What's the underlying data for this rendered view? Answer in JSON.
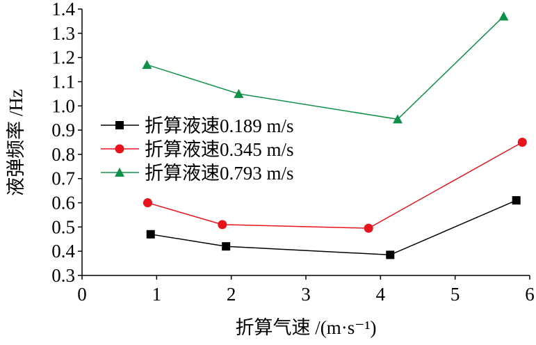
{
  "chart_data": {
    "type": "line",
    "xlabel": "折算气速 /(m·s⁻¹)",
    "ylabel": "液弹频率 /Hz",
    "xlim": [
      0,
      6
    ],
    "xticks": [
      0,
      1,
      2,
      3,
      4,
      5,
      6
    ],
    "ylim": [
      0.3,
      1.4
    ],
    "yticks": [
      0.3,
      0.4,
      0.5,
      0.6,
      0.7,
      0.8,
      0.9,
      {
        "value": 1,
        "label": "1.0"
      },
      1.1,
      1.2,
      1.3,
      1.4
    ],
    "series": [
      {
        "name": "折算液速0.189 m/s",
        "color": "#000000",
        "marker": "square",
        "x": [
          0.92,
          1.93,
          4.13,
          5.82
        ],
        "values": [
          0.47,
          0.42,
          0.385,
          0.61
        ]
      },
      {
        "name": "折算液速0.345 m/s",
        "color": "#e8141b",
        "marker": "circle",
        "x": [
          0.88,
          1.88,
          3.84,
          5.9
        ],
        "values": [
          0.6,
          0.51,
          0.495,
          0.85
        ]
      },
      {
        "name": "折算液速0.793 m/s",
        "color": "#0f9148",
        "marker": "triangle",
        "x": [
          0.87,
          2.1,
          4.23,
          5.65
        ],
        "values": [
          1.17,
          1.05,
          0.945,
          1.37
        ]
      }
    ]
  }
}
